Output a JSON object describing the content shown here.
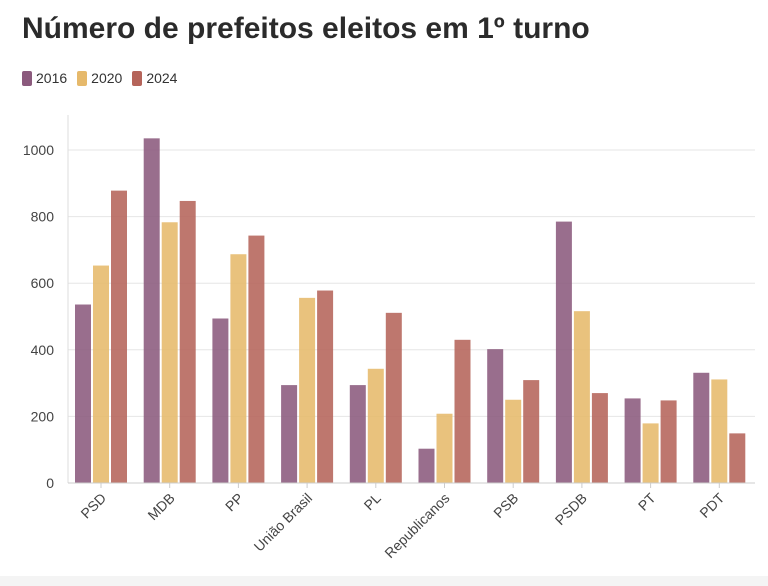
{
  "chart_data": {
    "type": "bar",
    "title": "Número de prefeitos eleitos em 1º turno",
    "xlabel": "",
    "ylabel": "",
    "ylim": [
      0,
      1100
    ],
    "yticks": [
      0,
      200,
      400,
      600,
      800,
      1000
    ],
    "grid": true,
    "legend_position": "top-left",
    "categories": [
      "PSD",
      "MDB",
      "PP",
      "União Brasil",
      "PL",
      "Republicanos",
      "PSB",
      "PSDB",
      "PT",
      "PDT"
    ],
    "series": [
      {
        "name": "2016",
        "color": "#8b5a7d",
        "values": [
          536,
          1035,
          494,
          294,
          294,
          103,
          402,
          785,
          254,
          331
        ]
      },
      {
        "name": "2020",
        "color": "#e6b96b",
        "values": [
          653,
          783,
          687,
          556,
          343,
          208,
          250,
          516,
          179,
          311
        ]
      },
      {
        "name": "2024",
        "color": "#b5645a",
        "values": [
          878,
          847,
          743,
          578,
          511,
          430,
          309,
          270,
          248,
          149
        ]
      }
    ]
  }
}
